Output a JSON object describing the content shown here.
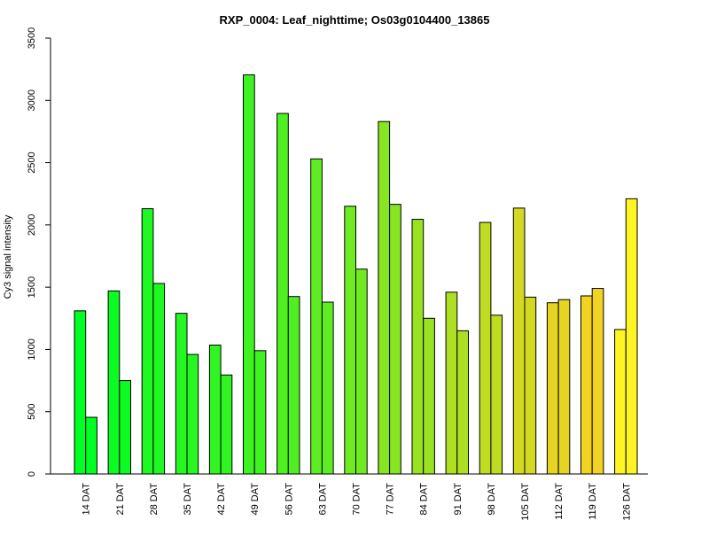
{
  "chart_data": {
    "type": "bar",
    "title": "RXP_0004: Leaf_nighttime; Os03g0104400_13865",
    "xlabel": "",
    "ylabel": "Cy3 signal intensity",
    "ylim": [
      0,
      3500
    ],
    "yticks": [
      0,
      500,
      1000,
      1500,
      2000,
      2500,
      3000,
      3500
    ],
    "grid": false,
    "legend": "none",
    "categories": [
      "14 DAT",
      "21 DAT",
      "28 DAT",
      "35 DAT",
      "42 DAT",
      "49 DAT",
      "56 DAT",
      "63 DAT",
      "70 DAT",
      "77 DAT",
      "84 DAT",
      "91 DAT",
      "98 DAT",
      "105 DAT",
      "112 DAT",
      "119 DAT",
      "126 DAT"
    ],
    "series": [
      {
        "values": [
          1310,
          1470,
          2130,
          1290,
          1035,
          3205,
          2895,
          2530,
          2150,
          2830,
          2045,
          1460,
          2020,
          2135,
          1375,
          1430,
          1160
        ]
      },
      {
        "values": [
          455,
          750,
          1530,
          960,
          795,
          990,
          1425,
          1380,
          1645,
          2165,
          1250,
          1150,
          1275,
          1420,
          1400,
          1490,
          2210
        ]
      }
    ],
    "colors": [
      "#00ff22",
      "#0cfb22",
      "#1ff822",
      "#26f722",
      "#31f522",
      "#3ff322",
      "#4ef022",
      "#5ded22",
      "#70ea22",
      "#87e622",
      "#99e222",
      "#aedf22",
      "#c0dc22",
      "#d3d822",
      "#e6d422",
      "#f3d322",
      "#fff522"
    ]
  }
}
